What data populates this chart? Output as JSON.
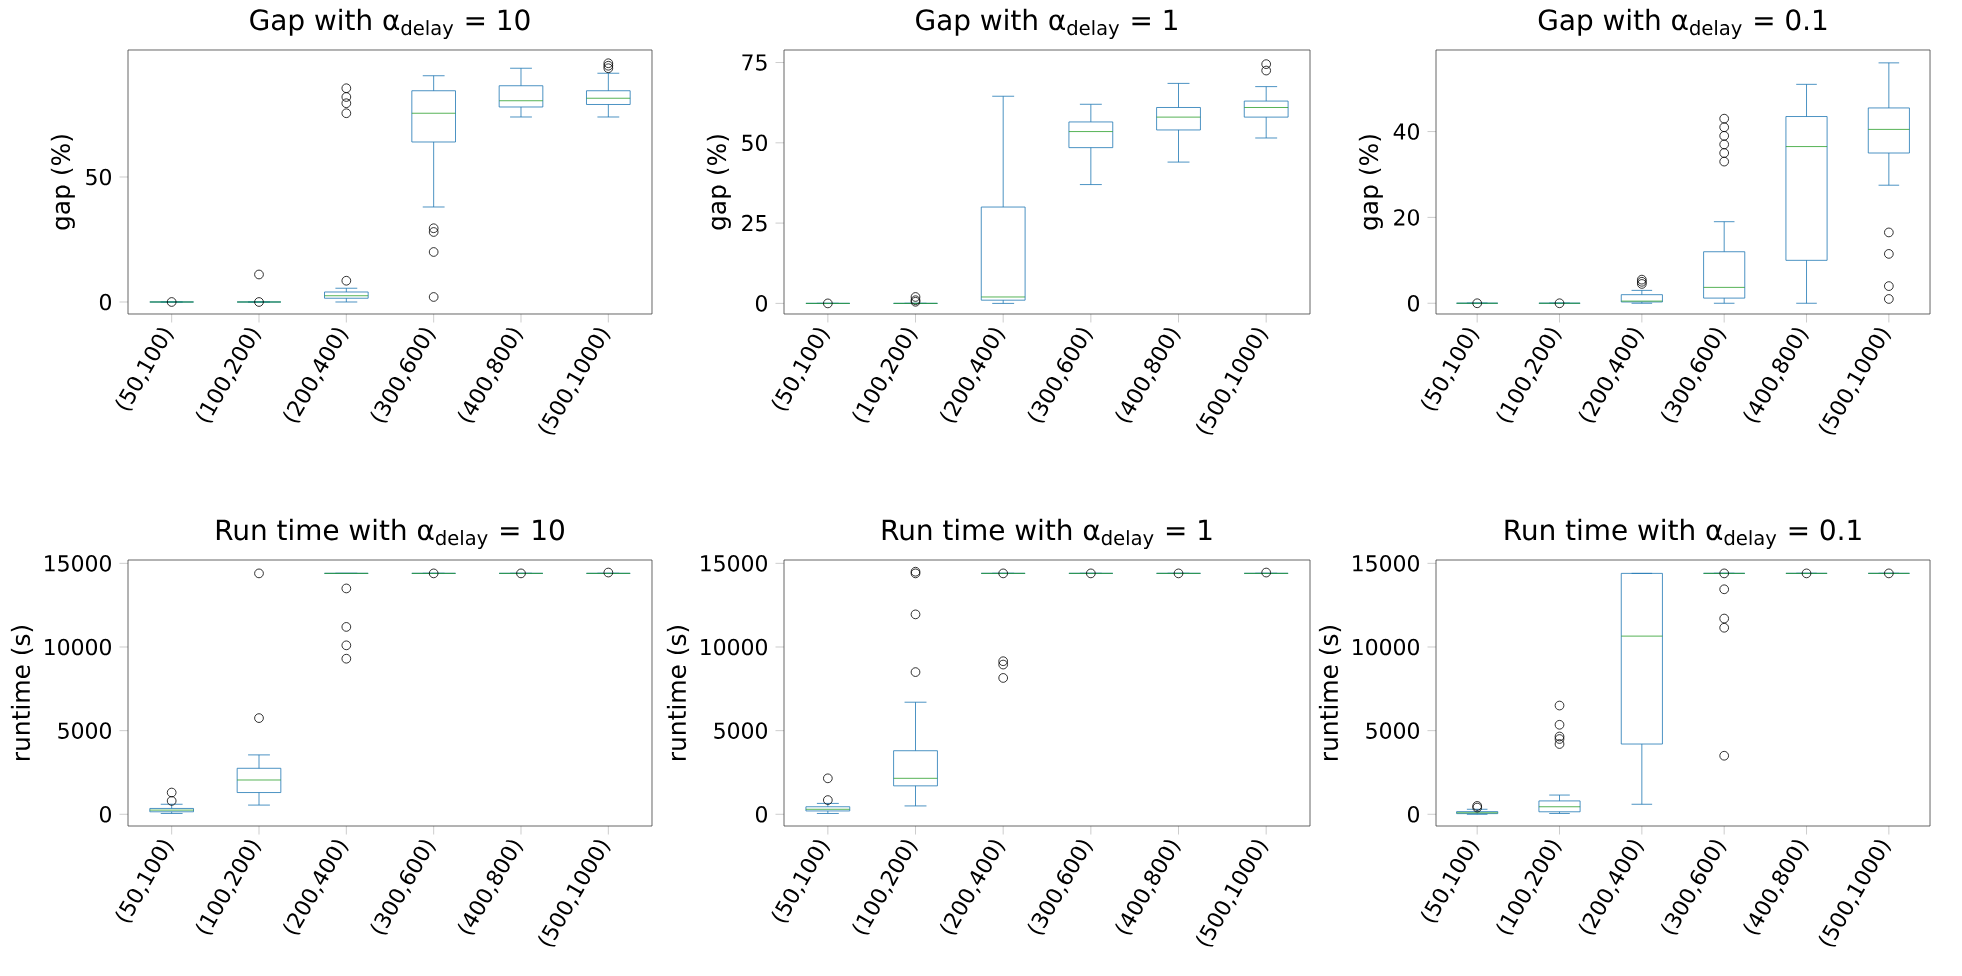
{
  "chart_data": [
    {
      "type": "box",
      "title": "Gap with α$_{delay}$ = 10",
      "ylabel": "gap (%)",
      "categories": [
        "(50,100)",
        "(100,200)",
        "(200,400)",
        "(300,600)",
        "(400,800)",
        "(500,1000)"
      ],
      "ylim": [
        -4.8,
        100.8
      ],
      "yticks": [
        0,
        50
      ],
      "color": "#1f77b4",
      "boxes": [
        {
          "low": 0,
          "q1": 0,
          "median": 0,
          "q3": 0,
          "high": 0,
          "outliers": [
            0
          ]
        },
        {
          "low": 0,
          "q1": 0,
          "median": 0,
          "q3": 0,
          "high": 0,
          "outliers": [
            0,
            11
          ]
        },
        {
          "low": 0,
          "q1": 1.5,
          "median": 2.5,
          "q3": 4,
          "high": 5.5,
          "outliers": [
            8.5,
            75.5,
            79.5,
            82,
            85.5
          ]
        },
        {
          "low": 38,
          "q1": 64,
          "median": 75.5,
          "q3": 84.5,
          "high": 90.5,
          "outliers": [
            29.5,
            28,
            20,
            2
          ]
        },
        {
          "low": 74,
          "q1": 78,
          "median": 80.5,
          "q3": 86.5,
          "high": 93.5
        },
        {
          "low": 74,
          "q1": 79,
          "median": 81.5,
          "q3": 84.5,
          "high": 91.5,
          "outliers": [
            93.5,
            94.5,
            95.5
          ]
        }
      ]
    },
    {
      "type": "box",
      "title": "Gap with α$_{delay}$ = 1",
      "ylabel": "gap (%)",
      "categories": [
        "(50,100)",
        "(100,200)",
        "(200,400)",
        "(300,600)",
        "(400,800)",
        "(500,1000)"
      ],
      "ylim": [
        -3.3,
        78.9
      ],
      "yticks": [
        0,
        25,
        50,
        75
      ],
      "color": "#1f77b4",
      "boxes": [
        {
          "low": 0,
          "q1": 0,
          "median": 0,
          "q3": 0,
          "high": 0,
          "outliers": [
            0
          ]
        },
        {
          "low": 0,
          "q1": 0,
          "median": 0,
          "q3": 0,
          "high": 0,
          "outliers": [
            0.5,
            1,
            2
          ]
        },
        {
          "low": 0,
          "q1": 1,
          "median": 2,
          "q3": 30,
          "high": 64.5
        },
        {
          "low": 37,
          "q1": 48.5,
          "median": 53.5,
          "q3": 56.5,
          "high": 62
        },
        {
          "low": 44,
          "q1": 54,
          "median": 58,
          "q3": 61,
          "high": 68.5
        },
        {
          "low": 51.5,
          "q1": 58,
          "median": 61,
          "q3": 63,
          "high": 67.5,
          "outliers": [
            72.5,
            74.5
          ]
        }
      ]
    },
    {
      "type": "box",
      "title": "Gap with α$_{delay}$ = 0.1",
      "ylabel": "gap (%)",
      "categories": [
        "(50,100)",
        "(100,200)",
        "(200,400)",
        "(300,600)",
        "(400,800)",
        "(500,1000)"
      ],
      "ylim": [
        -2.5,
        59
      ],
      "yticks": [
        0,
        20,
        40
      ],
      "color": "#1f77b4",
      "boxes": [
        {
          "low": 0,
          "q1": 0,
          "median": 0,
          "q3": 0,
          "high": 0,
          "outliers": [
            0
          ]
        },
        {
          "low": 0,
          "q1": 0,
          "median": 0,
          "q3": 0,
          "high": 0,
          "outliers": [
            0
          ]
        },
        {
          "low": 0,
          "q1": 0.3,
          "median": 0.5,
          "q3": 2,
          "high": 3,
          "outliers": [
            4.5,
            5,
            5.5
          ]
        },
        {
          "low": 0,
          "q1": 1.2,
          "median": 3.7,
          "q3": 12,
          "high": 19,
          "outliers": [
            33,
            35,
            37,
            39,
            41,
            43
          ]
        },
        {
          "low": 0,
          "q1": 10,
          "median": 36.5,
          "q3": 43.5,
          "high": 51
        },
        {
          "low": 27.5,
          "q1": 35,
          "median": 40.5,
          "q3": 45.5,
          "high": 56,
          "outliers": [
            16.5,
            11.5,
            4,
            1
          ]
        }
      ]
    },
    {
      "type": "box",
      "title": "Run time with α$_{delay}$ = 10",
      "ylabel": "runtime (s)",
      "categories": [
        "(50,100)",
        "(100,200)",
        "(200,400)",
        "(300,600)",
        "(400,800)",
        "(500,1000)"
      ],
      "ylim": [
        -700,
        15200
      ],
      "yticks": [
        0,
        5000,
        10000,
        15000
      ],
      "color": "#1f77b4",
      "boxes": [
        {
          "low": 50,
          "q1": 150,
          "median": 250,
          "q3": 350,
          "high": 600,
          "outliers": [
            800,
            1300
          ]
        },
        {
          "low": 550,
          "q1": 1300,
          "median": 2050,
          "q3": 2750,
          "high": 3550,
          "outliers": [
            5750,
            14400
          ]
        },
        {
          "low": 14400,
          "q1": 14400,
          "median": 14400,
          "q3": 14400,
          "high": 14400,
          "outliers": [
            13500,
            11200,
            10100,
            9300
          ]
        },
        {
          "low": 14400,
          "q1": 14400,
          "median": 14400,
          "q3": 14400,
          "high": 14400,
          "outliers": [
            14400
          ]
        },
        {
          "low": 14400,
          "q1": 14400,
          "median": 14400,
          "q3": 14400,
          "high": 14400,
          "outliers": [
            14400
          ]
        },
        {
          "low": 14400,
          "q1": 14400,
          "median": 14400,
          "q3": 14400,
          "high": 14400,
          "outliers": [
            14450
          ]
        }
      ]
    },
    {
      "type": "box",
      "title": "Run time with α$_{delay}$ = 1",
      "ylabel": "runtime (s)",
      "categories": [
        "(50,100)",
        "(100,200)",
        "(200,400)",
        "(300,600)",
        "(400,800)",
        "(500,1000)"
      ],
      "ylim": [
        -700,
        15200
      ],
      "yticks": [
        0,
        5000,
        10000,
        15000
      ],
      "color": "#1f77b4",
      "boxes": [
        {
          "low": 50,
          "q1": 200,
          "median": 300,
          "q3": 450,
          "high": 650,
          "outliers": [
            850,
            2150
          ]
        },
        {
          "low": 500,
          "q1": 1700,
          "median": 2150,
          "q3": 3800,
          "high": 6700,
          "outliers": [
            8500,
            11950,
            14400,
            14500
          ]
        },
        {
          "low": 14400,
          "q1": 14400,
          "median": 14400,
          "q3": 14400,
          "high": 14400,
          "outliers": [
            9150,
            8950,
            8150,
            14400
          ]
        },
        {
          "low": 14400,
          "q1": 14400,
          "median": 14400,
          "q3": 14400,
          "high": 14400,
          "outliers": [
            14400
          ]
        },
        {
          "low": 14400,
          "q1": 14400,
          "median": 14400,
          "q3": 14400,
          "high": 14400,
          "outliers": [
            14400
          ]
        },
        {
          "low": 14400,
          "q1": 14400,
          "median": 14400,
          "q3": 14400,
          "high": 14400,
          "outliers": [
            14450
          ]
        }
      ]
    },
    {
      "type": "box",
      "title": "Run time with α$_{delay}$ = 0.1",
      "ylabel": "runtime (s)",
      "categories": [
        "(50,100)",
        "(100,200)",
        "(200,400)",
        "(300,600)",
        "(400,800)",
        "(500,1000)"
      ],
      "ylim": [
        -700,
        15200
      ],
      "yticks": [
        0,
        5000,
        10000,
        15000
      ],
      "color": "#1f77b4",
      "boxes": [
        {
          "low": 0,
          "q1": 40,
          "median": 90,
          "q3": 160,
          "high": 300,
          "outliers": [
            400,
            500
          ]
        },
        {
          "low": 50,
          "q1": 150,
          "median": 450,
          "q3": 800,
          "high": 1150,
          "outliers": [
            4200,
            4500,
            4650,
            5350,
            6500
          ]
        },
        {
          "low": 600,
          "q1": 4200,
          "median": 10650,
          "q3": 14400,
          "high": 14400
        },
        {
          "low": 14400,
          "q1": 14400,
          "median": 14400,
          "q3": 14400,
          "high": 14400,
          "outliers": [
            13450,
            11700,
            11150,
            3500,
            14400
          ]
        },
        {
          "low": 14400,
          "q1": 14400,
          "median": 14400,
          "q3": 14400,
          "high": 14400,
          "outliers": [
            14400
          ]
        },
        {
          "low": 14400,
          "q1": 14400,
          "median": 14400,
          "q3": 14400,
          "high": 14400,
          "outliers": [
            14400
          ]
        }
      ]
    }
  ]
}
